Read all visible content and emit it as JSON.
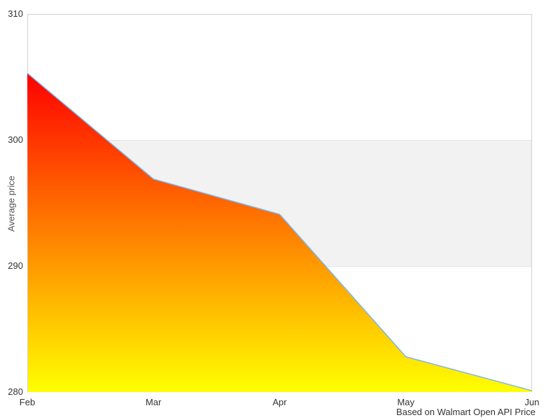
{
  "chart_data": {
    "type": "area",
    "categories": [
      "Feb",
      "Mar",
      "Apr",
      "May",
      "Jun"
    ],
    "values": [
      305.3,
      296.9,
      294.1,
      282.8,
      280.1
    ],
    "title": "",
    "xlabel": "",
    "ylabel": "Average price",
    "ylim": [
      280,
      310
    ],
    "yticks": [
      310,
      300,
      290,
      280
    ],
    "plot_band": {
      "from": 290,
      "to": 300,
      "color": "#f2f2f2"
    },
    "grid": "gridlines only at plot-band edges (290, 300)",
    "legend_position": "none",
    "caption": "Based on Walmart Open API Price",
    "colors": {
      "line": "#7cb5ec",
      "area_gradient_top": "#ff0000",
      "area_gradient_bottom": "#ffff00",
      "plot_band": "#f2f2f2",
      "gridline": "#e4e4e4",
      "plot_border": "#d8d8d8",
      "tick_text": "#333333",
      "axis_title_text": "#555555"
    }
  }
}
